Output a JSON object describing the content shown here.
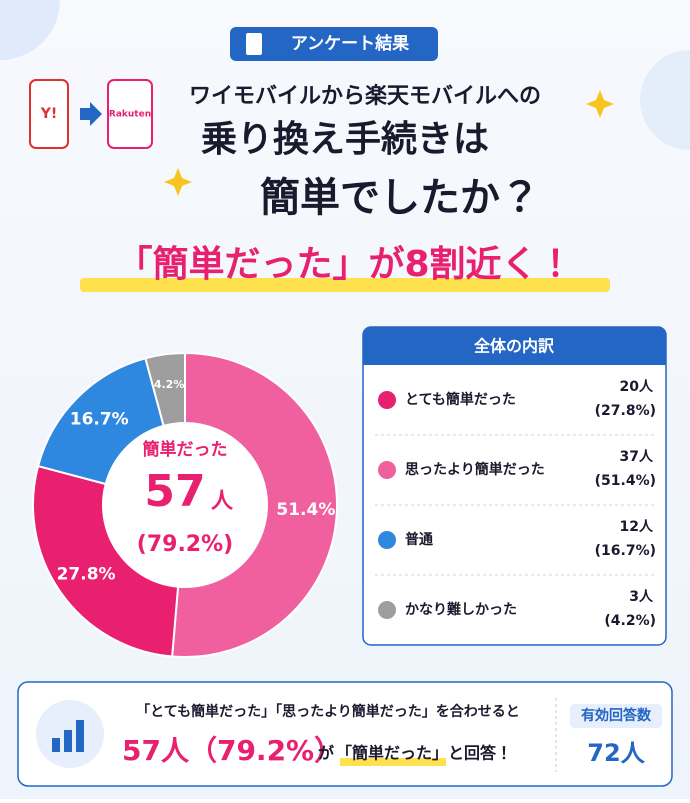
{
  "badge": "アンケート結果",
  "logos": {
    "from": "Y!",
    "to": "Rakuten"
  },
  "title": {
    "line1": "ワイモバイルから楽天モバイルへの",
    "line2": "乗り換え手続きは",
    "line3": "簡単でしたか？",
    "headline": "「簡単だった」が8割近く！"
  },
  "chart_data": {
    "type": "donut",
    "categories": [
      "思ったより簡単だった",
      "とても簡単だった",
      "普通",
      "かなり難しかった"
    ],
    "values": [
      51.4,
      27.8,
      16.7,
      4.2
    ],
    "value_labels": [
      "51.4%",
      "27.8%",
      "16.7%",
      "4.2%"
    ],
    "colors": [
      "#f0609e",
      "#e8206f",
      "#2e88e0",
      "#9e9e9e"
    ],
    "center": {
      "label": "簡単だった",
      "count": "57",
      "unit": "人",
      "percent": "(79.2%)"
    }
  },
  "breakdown": {
    "title": "全体の内訳",
    "rows": [
      {
        "label": "とても簡単だった",
        "count": "20人",
        "percent": "(27.8%)",
        "color": "#e8206f"
      },
      {
        "label": "思ったより簡単だった",
        "count": "37人",
        "percent": "(51.4%)",
        "color": "#f0609e"
      },
      {
        "label": "普通",
        "count": "12人",
        "percent": "(16.7%)",
        "color": "#2e88e0"
      },
      {
        "label": "かなり難しかった",
        "count": "3人",
        "percent": "(4.2%)",
        "color": "#9e9e9e"
      }
    ]
  },
  "summary": {
    "line1": "「とても簡単だった」「思ったより簡単だった」を合わせると",
    "highlight": "57人（79.2%）",
    "middle": "が",
    "quote": "「簡単だった」",
    "end": "と回答！",
    "respondents_label": "有効回答数",
    "respondents": "72人"
  }
}
